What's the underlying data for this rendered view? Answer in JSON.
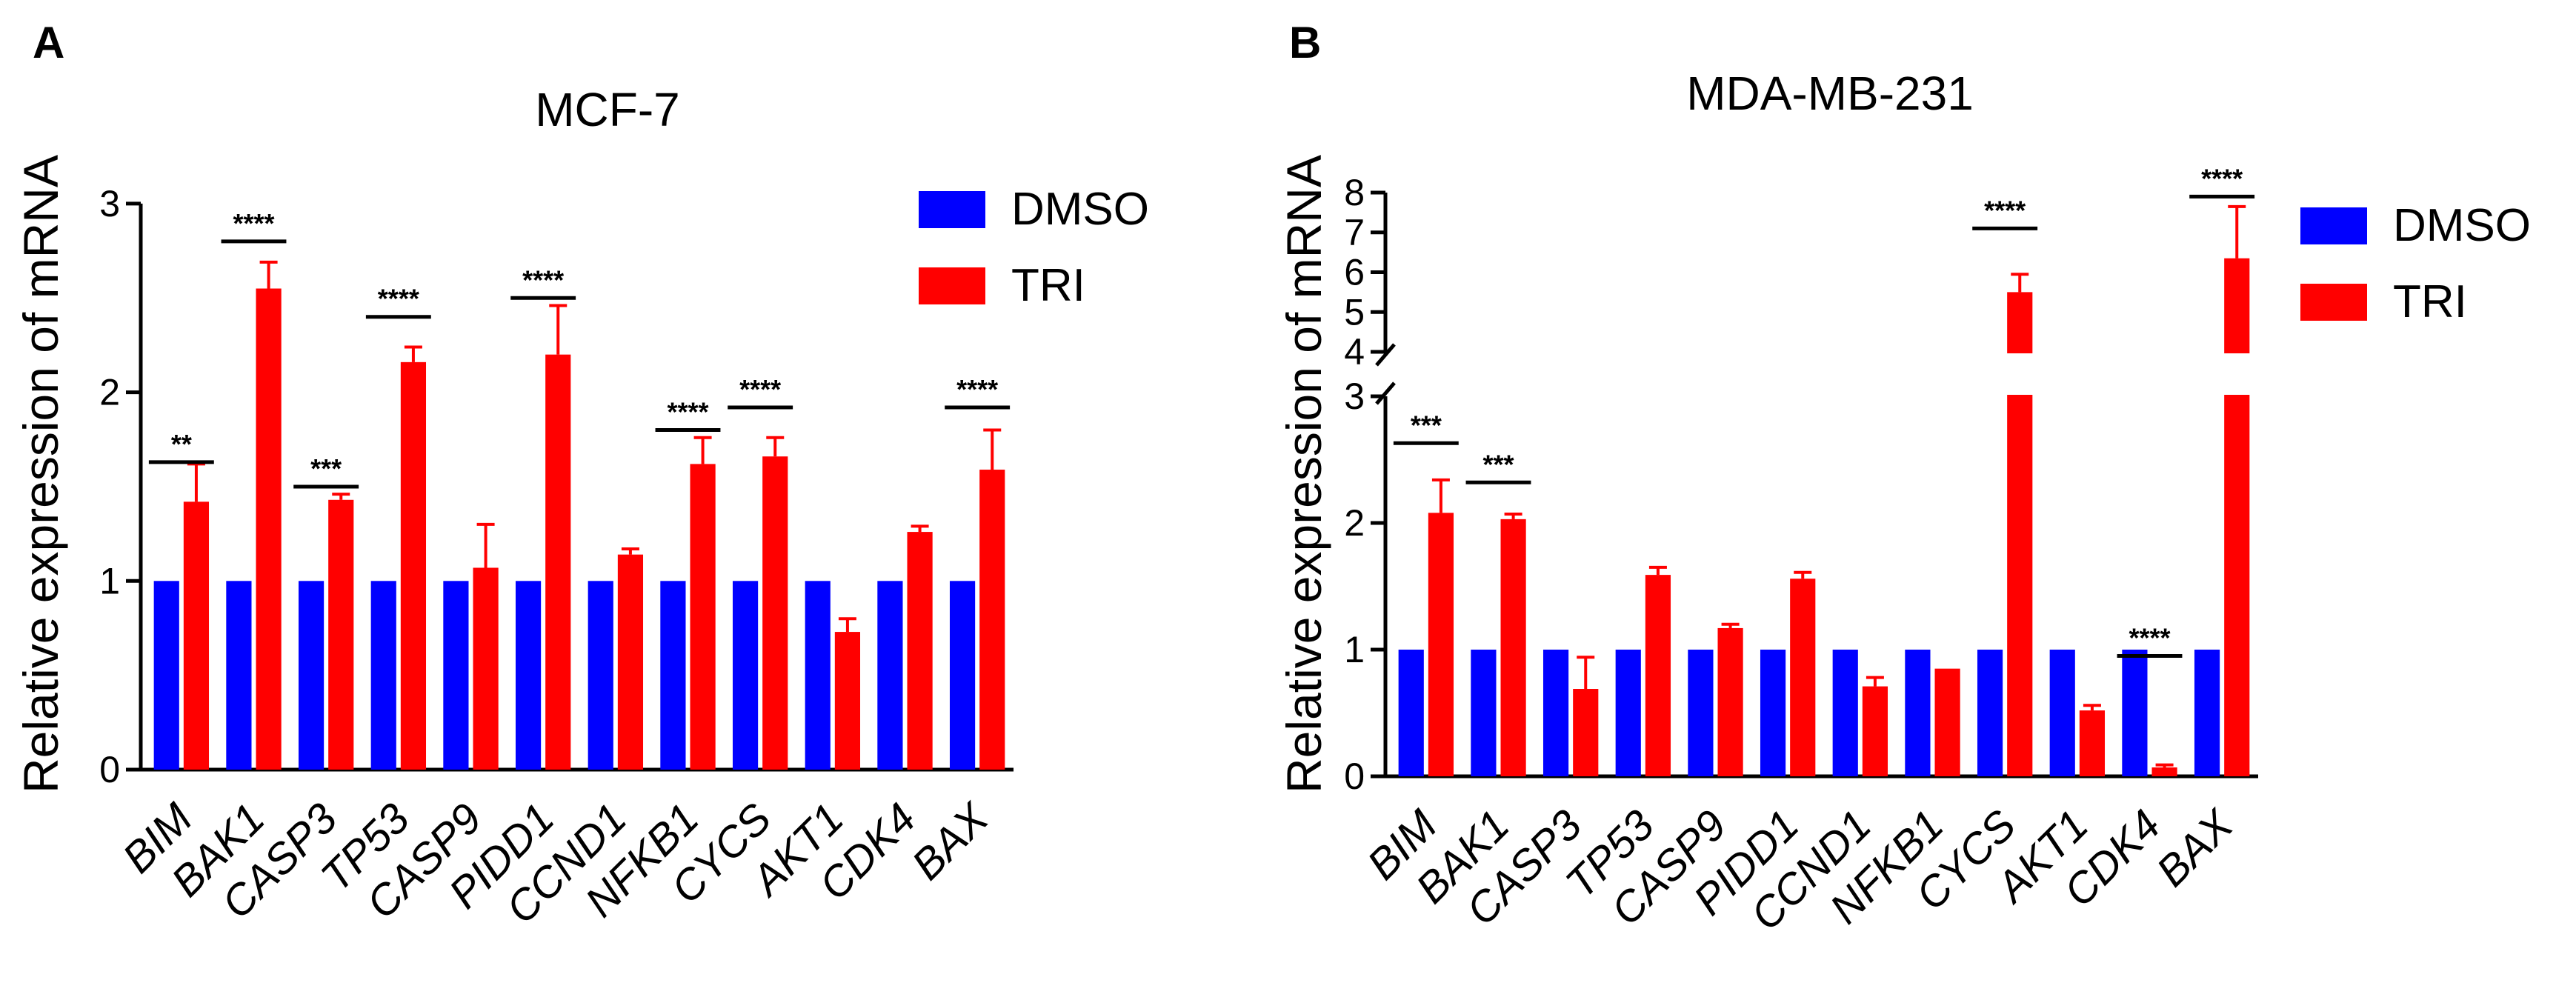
{
  "chart_data": [
    {
      "panel": "A",
      "type": "bar",
      "title": "MCF-7",
      "xlabel": "",
      "ylabel": "Relative expression of mRNA",
      "ylim": [
        0,
        3
      ],
      "yticks": [
        "0",
        "1",
        "2",
        "3"
      ],
      "categories": [
        "BIM",
        "BAK1",
        "CASP3",
        "TP53",
        "CASP9",
        "PIDD1",
        "CCND1",
        "NFKB1",
        "CYCS",
        "AKT1",
        "CDK4",
        "BAX"
      ],
      "series": [
        {
          "name": "DMSO",
          "color": "#0000ff",
          "values": [
            1,
            1,
            1,
            1,
            1,
            1,
            1,
            1,
            1,
            1,
            1,
            1
          ],
          "errors": [
            0.01,
            0.01,
            0.01,
            0.01,
            0.01,
            0.01,
            0.01,
            0.01,
            0.01,
            0.01,
            0.01,
            0.01
          ]
        },
        {
          "name": "TRI",
          "color": "#ff0000",
          "values": [
            1.42,
            2.55,
            1.43,
            2.16,
            1.07,
            2.2,
            1.14,
            1.62,
            1.66,
            0.73,
            1.26,
            1.59
          ],
          "errors": [
            0.2,
            0.14,
            0.03,
            0.08,
            0.23,
            0.26,
            0.03,
            0.14,
            0.1,
            0.07,
            0.03,
            0.21
          ]
        }
      ],
      "significance": [
        {
          "index": 0,
          "label": "**",
          "y": 1.63
        },
        {
          "index": 1,
          "label": "****",
          "y": 2.8
        },
        {
          "index": 2,
          "label": "***",
          "y": 1.5
        },
        {
          "index": 3,
          "label": "****",
          "y": 2.4
        },
        {
          "index": 5,
          "label": "****",
          "y": 2.5
        },
        {
          "index": 7,
          "label": "****",
          "y": 1.8
        },
        {
          "index": 8,
          "label": "****",
          "y": 1.92
        },
        {
          "index": 11,
          "label": "****",
          "y": 1.92
        }
      ],
      "legend": [
        "DMSO",
        "TRI"
      ]
    },
    {
      "panel": "B",
      "type": "bar",
      "title": "MDA-MB-231",
      "xlabel": "",
      "ylabel": "Relative expression of mRNA",
      "ylim": [
        0,
        8
      ],
      "axis_break": [
        3,
        4
      ],
      "yticks": [
        "0",
        "1",
        "2",
        "3",
        "4",
        "5",
        "6",
        "7",
        "8"
      ],
      "categories": [
        "BIM",
        "BAK1",
        "CASP3",
        "TP53",
        "CASP9",
        "PIDD1",
        "CCND1",
        "NFKB1",
        "CYCS",
        "AKT1",
        "CDK4",
        "BAX"
      ],
      "series": [
        {
          "name": "DMSO",
          "color": "#0000ff",
          "values": [
            1,
            1,
            1,
            1,
            1,
            1,
            1,
            1,
            1,
            1,
            1,
            1
          ],
          "errors": [
            0.01,
            0.01,
            0.01,
            0.01,
            0.01,
            0.01,
            0.01,
            0.01,
            0.01,
            0.01,
            0.01,
            0.01
          ]
        },
        {
          "name": "TRI",
          "color": "#ff0000",
          "values": [
            2.08,
            2.03,
            0.69,
            1.59,
            1.17,
            1.56,
            0.71,
            0.85,
            5.5,
            0.52,
            0.07,
            6.35
          ],
          "errors": [
            0.26,
            0.04,
            0.25,
            0.06,
            0.03,
            0.05,
            0.07,
            0.01,
            0.45,
            0.04,
            0.02,
            1.3
          ]
        }
      ],
      "significance": [
        {
          "index": 0,
          "label": "***",
          "y": 2.63
        },
        {
          "index": 1,
          "label": "***",
          "y": 2.32
        },
        {
          "index": 8,
          "label": "****",
          "y": 7.1
        },
        {
          "index": 10,
          "label": "****",
          "y": 0.95
        },
        {
          "index": 11,
          "label": "****",
          "y": 7.9
        }
      ],
      "legend": [
        "DMSO",
        "TRI"
      ]
    }
  ]
}
